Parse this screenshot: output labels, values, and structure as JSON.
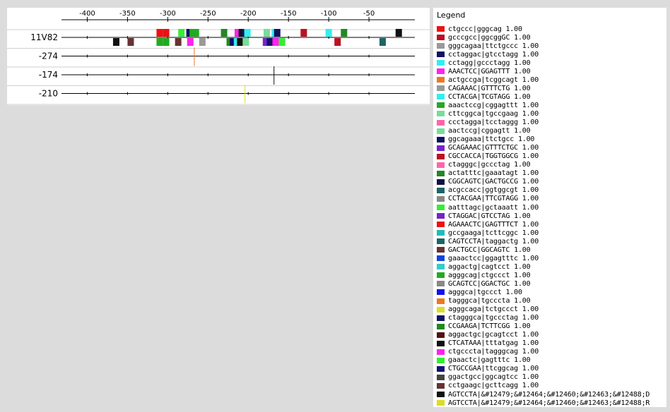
{
  "axis": {
    "ticks": [
      -400,
      -350,
      -300,
      -250,
      -200,
      -150,
      -100,
      -50
    ],
    "min": -432,
    "max": 7
  },
  "rows": [
    {
      "label": "11V82",
      "marks": [
        {
          "pos": -310,
          "lane": "top",
          "color": "#ee1111"
        },
        {
          "pos": -302,
          "lane": "top",
          "color": "#ee1111"
        },
        {
          "pos": -283,
          "lane": "top",
          "color": "#33ee33"
        },
        {
          "pos": -273,
          "lane": "top",
          "color": "#111166"
        },
        {
          "pos": -269,
          "lane": "top",
          "color": "#22aa22"
        },
        {
          "pos": -265,
          "lane": "top",
          "color": "#22aa22"
        },
        {
          "pos": -230,
          "lane": "top",
          "color": "#228822"
        },
        {
          "pos": -213,
          "lane": "top",
          "color": "#ff22ee"
        },
        {
          "pos": -208,
          "lane": "top",
          "color": "#111111"
        },
        {
          "pos": -204,
          "lane": "top",
          "color": "#111166"
        },
        {
          "pos": -201,
          "lane": "top",
          "color": "#33eeee"
        },
        {
          "pos": -177,
          "lane": "top",
          "color": "#77dd99"
        },
        {
          "pos": -167,
          "lane": "top",
          "color": "#33eeee"
        },
        {
          "pos": -164,
          "lane": "top",
          "color": "#111166"
        },
        {
          "pos": -131,
          "lane": "top",
          "color": "#bb1122"
        },
        {
          "pos": -100,
          "lane": "top",
          "color": "#33eeee"
        },
        {
          "pos": -81,
          "lane": "top",
          "color": "#228822"
        },
        {
          "pos": -13,
          "lane": "top",
          "color": "#111111"
        },
        {
          "pos": -364,
          "lane": "bottom",
          "color": "#111111"
        },
        {
          "pos": -346,
          "lane": "bottom",
          "color": "#663333"
        },
        {
          "pos": -310,
          "lane": "bottom",
          "color": "#22aa22"
        },
        {
          "pos": -302,
          "lane": "bottom",
          "color": "#22aa22"
        },
        {
          "pos": -287,
          "lane": "bottom",
          "color": "#663333"
        },
        {
          "pos": -272,
          "lane": "bottom",
          "color": "#ff22ee"
        },
        {
          "pos": -257,
          "lane": "bottom",
          "color": "#999999"
        },
        {
          "pos": -223,
          "lane": "bottom",
          "color": "#228822"
        },
        {
          "pos": -219,
          "lane": "bottom",
          "color": "#111166"
        },
        {
          "pos": -214,
          "lane": "bottom",
          "color": "#33eeee"
        },
        {
          "pos": -210,
          "lane": "bottom",
          "color": "#111111"
        },
        {
          "pos": -203,
          "lane": "bottom",
          "color": "#77dd99"
        },
        {
          "pos": -178,
          "lane": "bottom",
          "color": "#7722cc"
        },
        {
          "pos": -173,
          "lane": "bottom",
          "color": "#111166"
        },
        {
          "pos": -166,
          "lane": "bottom",
          "color": "#ff22ee"
        },
        {
          "pos": -158,
          "lane": "bottom",
          "color": "#33ee33"
        },
        {
          "pos": -89,
          "lane": "bottom",
          "color": "#bb1122"
        },
        {
          "pos": -33,
          "lane": "bottom",
          "color": "#1a6666"
        }
      ]
    },
    {
      "label": "-274",
      "marks": [
        {
          "pos": -267,
          "lane": "tick",
          "color": "#ee7722"
        }
      ]
    },
    {
      "label": "-174",
      "marks": [
        {
          "pos": -168,
          "lane": "tick",
          "color": "#111111"
        }
      ]
    },
    {
      "label": "-210",
      "marks": [
        {
          "pos": -204,
          "lane": "tick",
          "color": "#dddd22"
        }
      ]
    }
  ],
  "legend": {
    "title": "Legend",
    "items": [
      {
        "color": "#ee1111",
        "label": "ctgccc|gggcag 1.00"
      },
      {
        "color": "#bb1122",
        "label": "gcccgcc|ggcggGC 1.00"
      },
      {
        "color": "#999999",
        "label": "gggcagaa|ttctgccc 1.00"
      },
      {
        "color": "#111166",
        "label": "cctaggac|gtcctagg 1.00"
      },
      {
        "color": "#33eeee",
        "label": "cctagg|gccctagg 1.00"
      },
      {
        "color": "#ff22ee",
        "label": "AAACTCC|GGAGTTT 1.00"
      },
      {
        "color": "#ee7722",
        "label": "actgccga|tcggcagt 1.00"
      },
      {
        "color": "#999999",
        "label": "CAGAAAC|GTTTCTG 1.00"
      },
      {
        "color": "#33eeee",
        "label": "CCTACGA|TCGTAGG 1.00"
      },
      {
        "color": "#22aa22",
        "label": "aaactccg|cggagttt 1.00"
      },
      {
        "color": "#77dd99",
        "label": "cttcggca|tgccgaag 1.00"
      },
      {
        "color": "#ff66aa",
        "label": "ccctagga|tcctaggg 1.00"
      },
      {
        "color": "#77dd99",
        "label": "aactccg|cggagtt 1.00"
      },
      {
        "color": "#111166",
        "label": "ggcagaaa|ttctgcc 1.00"
      },
      {
        "color": "#7722cc",
        "label": "GCAGAAAC|GTTTCTGC 1.00"
      },
      {
        "color": "#bb1122",
        "label": "CGCCACCA|TGGTGGCG 1.00"
      },
      {
        "color": "#ff66aa",
        "label": "ctagggc|gccctag 1.00"
      },
      {
        "color": "#228822",
        "label": "actatttc|gaaatagt 1.00"
      },
      {
        "color": "#111144",
        "label": "CGGCAGTC|GACTGCCG 1.00"
      },
      {
        "color": "#1a6666",
        "label": "acgccacc|ggtggcgt 1.00"
      },
      {
        "color": "#888888",
        "label": "CCTACGAA|TTCGTAGG 1.00"
      },
      {
        "color": "#33ee33",
        "label": "aatttagc|gctaaatt 1.00"
      },
      {
        "color": "#7722cc",
        "label": "CTAGGAC|GTCCTAG 1.00"
      },
      {
        "color": "#ee1111",
        "label": "AGAAACTC|GAGTTTCT 1.00"
      },
      {
        "color": "#22bbbb",
        "label": "gccgaaga|tcttcggc 1.00"
      },
      {
        "color": "#1a6666",
        "label": "CAGTCCTA|taggactg 1.00"
      },
      {
        "color": "#663333",
        "label": "GACTGCC|GGCAGTC 1.00"
      },
      {
        "color": "#1144dd",
        "label": "gaaactcc|ggagtttc 1.00"
      },
      {
        "color": "#33cccc",
        "label": "aggactg|cagtcct 1.00"
      },
      {
        "color": "#22aa22",
        "label": "agggcag|ctgccct 1.00"
      },
      {
        "color": "#888888",
        "label": "GCAGTCC|GGACTGC 1.00"
      },
      {
        "color": "#1111ee",
        "label": "agggca|tgccct 1.00"
      },
      {
        "color": "#ee7722",
        "label": "tagggca|tgcccta 1.00"
      },
      {
        "color": "#dddd22",
        "label": "agggcaga|tctgccct 1.00"
      },
      {
        "color": "#111166",
        "label": "ctagggca|tgccctag 1.00"
      },
      {
        "color": "#228822",
        "label": "CCGAAGA|TCTTCGG 1.00"
      },
      {
        "color": "#551111",
        "label": "aggactgc|gcagtcct 1.00"
      },
      {
        "color": "#111111",
        "label": "CTCATAAA|tttatgag 1.00"
      },
      {
        "color": "#ff22ee",
        "label": "ctgcccta|tagggcag 1.00"
      },
      {
        "color": "#33ee33",
        "label": "gaaactc|gagtttc 1.00"
      },
      {
        "color": "#111177",
        "label": "CTGCCGAA|ttcggcag 1.00"
      },
      {
        "color": "#444444",
        "label": "ggactgcc|ggcagtcc 1.00"
      },
      {
        "color": "#663333",
        "label": "cctgaagc|gcttcagg 1.00"
      },
      {
        "color": "#111111",
        "label": "AGTCCTA|&#12479;&#12464;&#12460;&#12463;&#12488;D"
      },
      {
        "color": "#dddd22",
        "label": "AGTCCTA|&#12479;&#12464;&#12460;&#12463;&#12488;R"
      }
    ]
  }
}
